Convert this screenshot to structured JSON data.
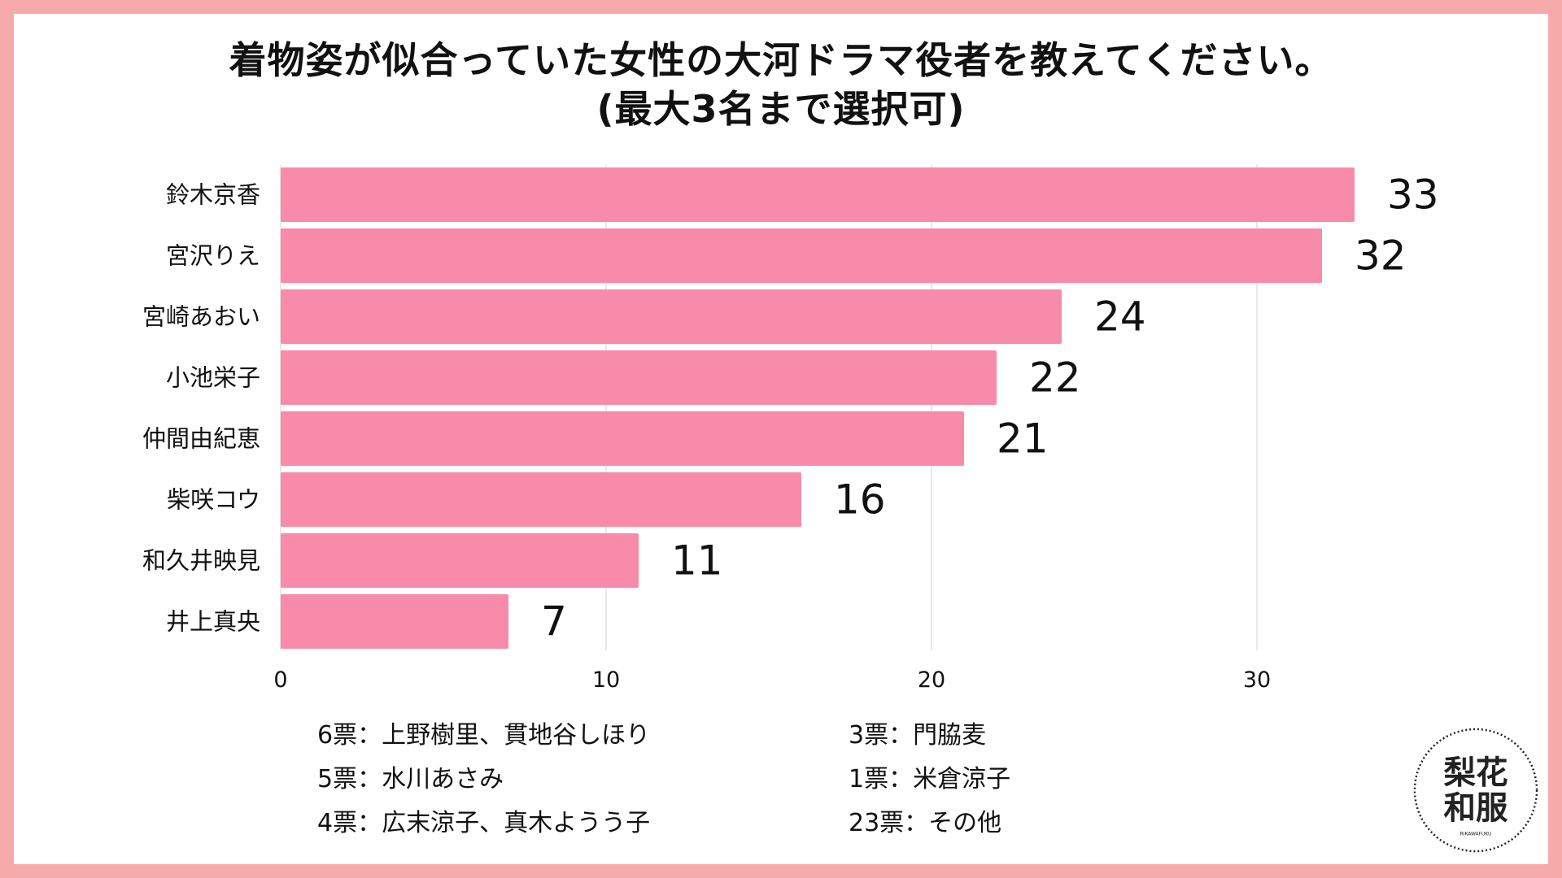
{
  "title": {
    "line1": "着物姿が似合っていた女性の大河ドラマ役者を教えてください。",
    "line2": "(最大3名まで選択可)"
  },
  "chart_data": {
    "type": "bar",
    "orientation": "horizontal",
    "categories": [
      "鈴木京香",
      "宮沢りえ",
      "宮崎あおい",
      "小池栄子",
      "仲間由紀恵",
      "柴咲コウ",
      "和久井映見",
      "井上真央"
    ],
    "values": [
      33,
      32,
      24,
      22,
      21,
      16,
      11,
      7
    ],
    "xlim": [
      0,
      36
    ],
    "xticks": [
      0,
      10,
      20,
      30
    ],
    "grid": true,
    "bar_color": "#f78ba9",
    "grid_color": "#d9d9d9"
  },
  "notes": {
    "left": [
      "6票：上野樹里、貫地谷しほり",
      "5票：水川あさみ",
      "4票：広末涼子、真木ようう子"
    ],
    "right": [
      "3票：門脇麦",
      "1票：米倉涼子",
      "23票：その他"
    ]
  },
  "logo": {
    "text": "梨花和服",
    "subtext": "RIKAWAFUKU"
  },
  "colors": {
    "border": "#f6aaaa",
    "bar": "#f78ba9"
  }
}
